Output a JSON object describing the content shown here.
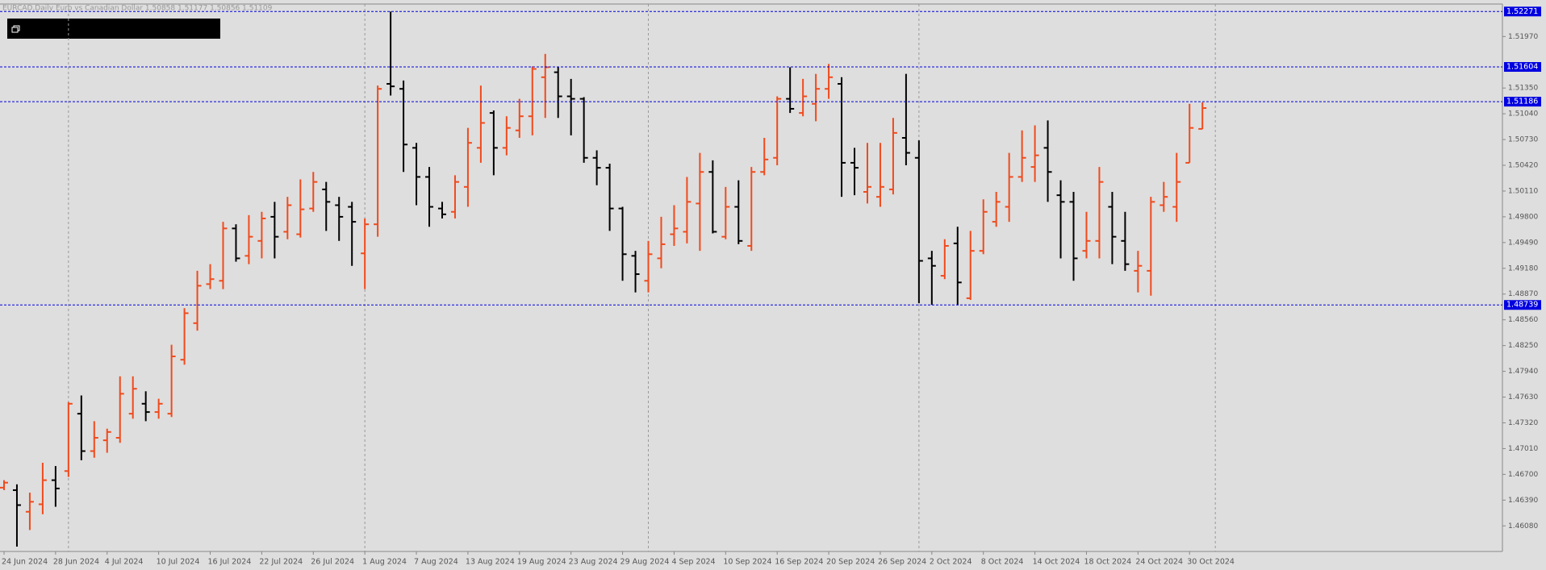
{
  "chart_data": {
    "type": "ohlc",
    "title": "EURCAD,Daily  Euro vs Canadian Dollar  1.50858 1.51177 1.50856 1.51109",
    "categories": [
      "24 Jun 2024",
      null,
      null,
      null,
      "28 Jun 2024",
      null,
      null,
      null,
      "4 Jul 2024",
      null,
      null,
      null,
      "10 Jul 2024",
      null,
      null,
      null,
      "16 Jul 2024",
      null,
      null,
      null,
      "22 Jul 2024",
      null,
      null,
      null,
      "26 Jul 2024",
      null,
      null,
      null,
      "1 Aug 2024",
      null,
      null,
      null,
      "7 Aug 2024",
      null,
      null,
      null,
      "13 Aug 2024",
      null,
      null,
      null,
      "19 Aug 2024",
      null,
      null,
      null,
      "23 Aug 2024",
      null,
      null,
      null,
      "29 Aug 2024",
      null,
      null,
      null,
      "4 Sep 2024",
      null,
      null,
      null,
      "10 Sep 2024",
      null,
      null,
      null,
      "16 Sep 2024",
      null,
      null,
      null,
      "20 Sep 2024",
      null,
      null,
      null,
      "26 Sep 2024",
      null,
      null,
      null,
      "2 Oct 2024",
      null,
      null,
      null,
      "8 Oct 2024",
      null,
      null,
      null,
      "14 Oct 2024",
      null,
      null,
      null,
      "18 Oct 2024",
      null,
      null,
      null,
      "24 Oct 2024",
      null,
      null,
      null,
      "30 Oct 2024",
      null
    ],
    "open": [
      1.4654,
      1.4651,
      1.4625,
      1.4634,
      1.4663,
      1.4674,
      1.4743,
      1.4698,
      1.4711,
      1.4714,
      1.4743,
      1.4755,
      1.4745,
      1.4743,
      1.4808,
      1.4852,
      1.4899,
      1.4903,
      1.4966,
      1.4933,
      1.4951,
      1.498,
      1.4962,
      1.4959,
      1.499,
      1.5013,
      1.4994,
      1.4992,
      1.4936,
      1.4971,
      1.514,
      1.5134,
      1.5063,
      1.5028,
      1.499,
      1.4986,
      1.5016,
      1.5063,
      1.5105,
      1.5063,
      1.5084,
      1.5101,
      1.5148,
      1.5154,
      1.5125,
      1.5122,
      1.5051,
      1.5039,
      1.499,
      1.4933,
      1.4903,
      1.493,
      1.4959,
      1.4962,
      1.4996,
      1.5034,
      1.4956,
      1.4992,
      1.4945,
      1.5034,
      1.5051,
      1.5122,
      1.5105,
      1.5116,
      1.5134,
      1.514,
      1.5045,
      1.501,
      1.5004,
      1.5013,
      1.5075,
      1.5051,
      1.493,
      1.4909,
      1.4948,
      1.4882,
      1.4939,
      1.4974,
      1.4992,
      1.5028,
      1.504,
      1.5063,
      1.5006,
      1.4998,
      1.4939,
      1.4951,
      1.4992,
      1.4951,
      1.4915,
      1.4915,
      1.4994,
      1.4992,
      1.5045,
      1.50858
    ],
    "high": [
      1.4663,
      1.4658,
      1.4648,
      1.4684,
      1.468,
      1.4757,
      1.4765,
      1.4734,
      1.4725,
      1.4788,
      1.4788,
      1.477,
      1.4761,
      1.4826,
      1.487,
      1.4915,
      1.4923,
      1.4974,
      1.4971,
      1.4982,
      1.4986,
      1.4998,
      1.5004,
      1.5025,
      1.5034,
      1.5022,
      1.5004,
      1.4998,
      1.4978,
      1.5138,
      1.5227,
      1.5144,
      1.5069,
      1.504,
      1.4998,
      1.503,
      1.5087,
      1.5138,
      1.5108,
      1.5101,
      1.5122,
      1.5161,
      1.5176,
      1.516,
      1.5146,
      1.5124,
      1.506,
      1.5044,
      1.4992,
      1.4939,
      1.4951,
      1.498,
      1.4994,
      1.5028,
      1.5057,
      1.5048,
      1.5016,
      1.5024,
      1.504,
      1.5075,
      1.5125,
      1.516,
      1.5146,
      1.5152,
      1.5164,
      1.5148,
      1.5063,
      1.5069,
      1.5069,
      1.5099,
      1.5152,
      1.5072,
      1.4939,
      1.4953,
      1.4968,
      1.4963,
      1.5001,
      1.501,
      1.5057,
      1.5084,
      1.509,
      1.5096,
      1.5024,
      1.501,
      1.4986,
      1.504,
      1.501,
      1.4986,
      1.4939,
      1.5004,
      1.5022,
      1.5057,
      1.5116,
      1.51177
    ],
    "low": [
      1.4651,
      1.4583,
      1.4603,
      1.4622,
      1.4631,
      1.4667,
      1.4687,
      1.469,
      1.4696,
      1.4708,
      1.4737,
      1.4734,
      1.4737,
      1.4739,
      1.4802,
      1.4843,
      1.4893,
      1.4893,
      1.4926,
      1.4923,
      1.493,
      1.493,
      1.4953,
      1.4955,
      1.4986,
      1.4963,
      1.4951,
      1.4921,
      1.4893,
      1.4956,
      1.5126,
      1.5034,
      1.4994,
      1.4968,
      1.4978,
      1.4978,
      1.4992,
      1.5045,
      1.503,
      1.5054,
      1.5075,
      1.5078,
      1.5099,
      1.5099,
      1.5078,
      1.5045,
      1.5018,
      1.4963,
      1.4903,
      1.4889,
      1.4889,
      1.4918,
      1.4945,
      1.4948,
      1.4939,
      1.496,
      1.4953,
      1.4947,
      1.4939,
      1.503,
      1.5042,
      1.5105,
      1.5101,
      1.5095,
      1.5122,
      1.5004,
      1.5006,
      1.4996,
      1.4992,
      1.5007,
      1.5042,
      1.4876,
      1.4874,
      1.4905,
      1.4874,
      1.488,
      1.4935,
      1.4968,
      1.4974,
      1.5022,
      1.5022,
      1.4998,
      1.493,
      1.4903,
      1.493,
      1.493,
      1.4923,
      1.4915,
      1.4889,
      1.4885,
      1.4986,
      1.4974,
      1.5045,
      1.50856
    ],
    "close": [
      1.466,
      1.4633,
      1.4637,
      1.4663,
      1.4653,
      1.4755,
      1.4698,
      1.4714,
      1.4721,
      1.4767,
      1.4773,
      1.4745,
      1.4755,
      1.4812,
      1.4864,
      1.4897,
      1.4905,
      1.4966,
      1.493,
      1.4956,
      1.4978,
      1.4956,
      1.4994,
      1.4989,
      1.5022,
      1.4998,
      1.498,
      1.4974,
      1.4971,
      1.5134,
      1.5137,
      1.5067,
      1.5028,
      1.4992,
      1.4983,
      1.5022,
      1.5069,
      1.5093,
      1.5063,
      1.5087,
      1.5101,
      1.5158,
      1.516,
      1.5125,
      1.5122,
      1.5051,
      1.5039,
      1.499,
      1.4935,
      1.4911,
      1.4935,
      1.4947,
      1.4966,
      1.4998,
      1.5034,
      1.4962,
      1.4992,
      1.4951,
      1.5034,
      1.5049,
      1.5122,
      1.511,
      1.5125,
      1.5134,
      1.5148,
      1.5045,
      1.5039,
      1.5016,
      1.5016,
      1.5081,
      1.5057,
      1.4927,
      1.4921,
      1.4945,
      1.4901,
      1.4939,
      1.4986,
      1.4998,
      1.5028,
      1.5051,
      1.5054,
      1.5034,
      1.4998,
      1.493,
      1.4951,
      1.5022,
      1.4956,
      1.4923,
      1.4921,
      1.4998,
      1.5004,
      1.5022,
      1.5087,
      1.51109
    ],
    "up_color": "#f04a1c",
    "down_color": "#000000",
    "ylim": [
      1.45772,
      1.52361
    ],
    "yticks": [
      {
        "value": 1.5197,
        "label": "1.51970"
      },
      {
        "value": 1.5135,
        "label": "1.51350"
      },
      {
        "value": 1.5104,
        "label": "1.51040"
      },
      {
        "value": 1.5073,
        "label": "1.50730"
      },
      {
        "value": 1.5042,
        "label": "1.50420"
      },
      {
        "value": 1.5011,
        "label": "1.50110"
      },
      {
        "value": 1.498,
        "label": "1.49800"
      },
      {
        "value": 1.4949,
        "label": "1.49490"
      },
      {
        "value": 1.4918,
        "label": "1.49180"
      },
      {
        "value": 1.4887,
        "label": "1.48870"
      },
      {
        "value": 1.4856,
        "label": "1.48560"
      },
      {
        "value": 1.4825,
        "label": "1.48250"
      },
      {
        "value": 1.4794,
        "label": "1.47940"
      },
      {
        "value": 1.4763,
        "label": "1.47630"
      },
      {
        "value": 1.4732,
        "label": "1.47320"
      },
      {
        "value": 1.4701,
        "label": "1.47010"
      },
      {
        "value": 1.467,
        "label": "1.46700"
      },
      {
        "value": 1.4639,
        "label": "1.46390"
      },
      {
        "value": 1.4608,
        "label": "1.46080"
      }
    ],
    "levels": [
      1.52271,
      1.51604,
      1.51186,
      1.48739
    ],
    "level_color": "#0000e0"
  }
}
